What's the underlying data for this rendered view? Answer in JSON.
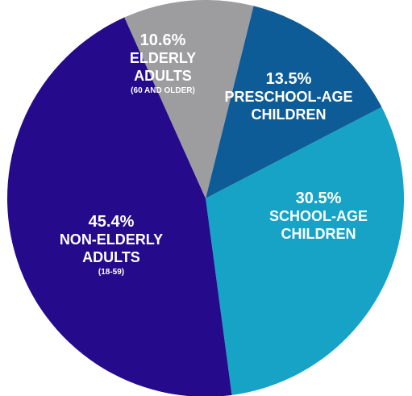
{
  "chart_data": {
    "type": "pie",
    "start_angle_deg": 14,
    "direction": "clockwise",
    "slices": [
      {
        "key": "preschool",
        "value": 13.5,
        "pct_label": "13.5%",
        "name_lines": [
          "PRESCHOOL-AGE",
          "CHILDREN"
        ],
        "sub_label": "",
        "color": "#0E5C97"
      },
      {
        "key": "school",
        "value": 30.5,
        "pct_label": "30.5%",
        "name_lines": [
          "SCHOOL-AGE",
          "CHILDREN"
        ],
        "sub_label": "",
        "color": "#16A3C6"
      },
      {
        "key": "nonelderly",
        "value": 45.4,
        "pct_label": "45.4%",
        "name_lines": [
          "NON-ELDERLY",
          "ADULTS"
        ],
        "sub_label": "(18-59)",
        "color": "#260A8C"
      },
      {
        "key": "elderly",
        "value": 10.6,
        "pct_label": "10.6%",
        "name_lines": [
          "ELDERLY",
          "ADULTS"
        ],
        "sub_label": "(60 AND OLDER)",
        "color": "#9D9D9F"
      }
    ]
  }
}
